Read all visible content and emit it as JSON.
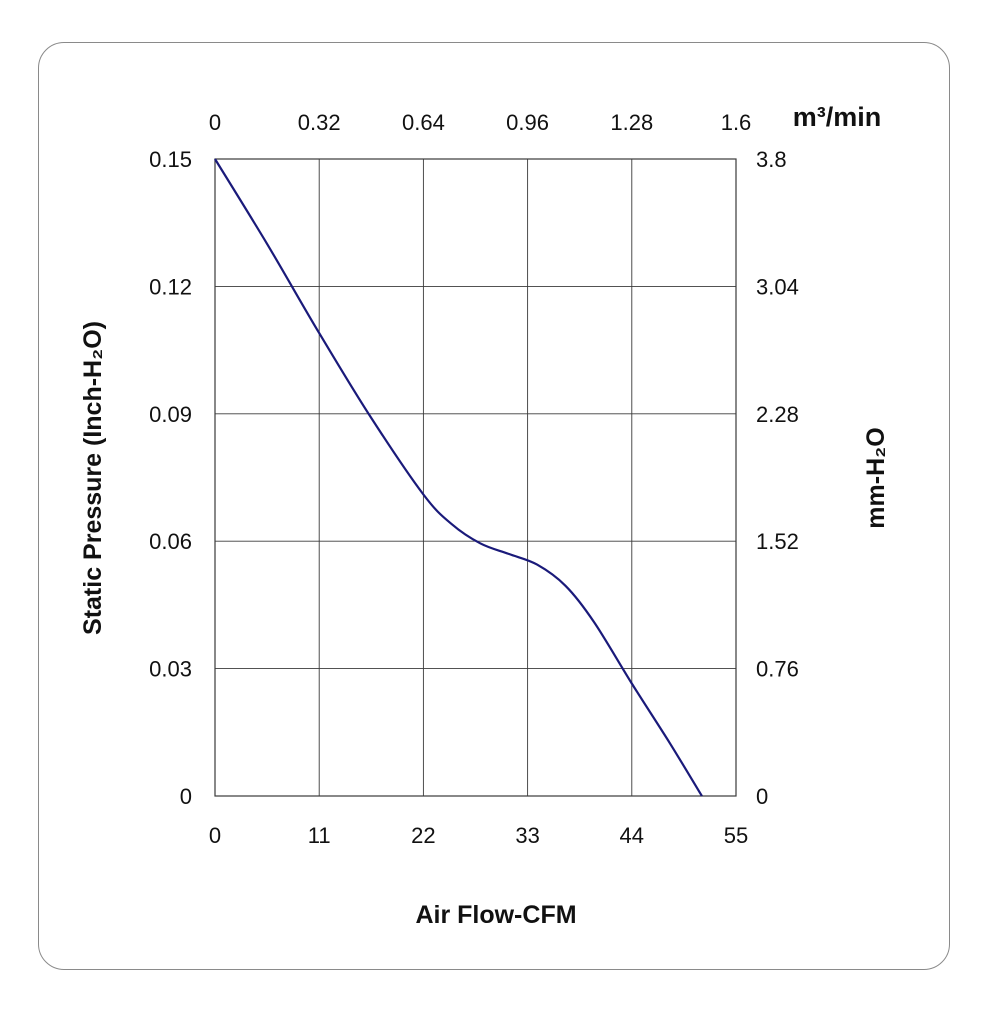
{
  "chart_data": {
    "type": "line",
    "xlabel": "Air Flow-CFM",
    "ylabel": "Static Pressure (Inch-H₂O)",
    "ylabel_right": "mm-H₂O",
    "xlabel_top": "m³/min",
    "xlim": [
      0,
      55
    ],
    "ylim": [
      0,
      0.15
    ],
    "x_ticks": [
      "0",
      "11",
      "22",
      "33",
      "44",
      "55"
    ],
    "y_ticks": [
      "0",
      "0.03",
      "0.06",
      "0.09",
      "0.12",
      "0.15"
    ],
    "top_ticks": [
      "0",
      "0.32",
      "0.64",
      "0.96",
      "1.28",
      "1.6"
    ],
    "right_ticks": [
      "0",
      "0.76",
      "1.52",
      "2.28",
      "3.04",
      "3.8"
    ],
    "grid": true,
    "series": [
      {
        "color": "#1a1a7a",
        "x": [
          0,
          5.5,
          11,
          16.5,
          22,
          25,
          28,
          31,
          34,
          37,
          40,
          44,
          48,
          51.4
        ],
        "y": [
          0.15,
          0.13,
          0.109,
          0.089,
          0.071,
          0.064,
          0.0595,
          0.057,
          0.0545,
          0.0495,
          0.041,
          0.0265,
          0.0125,
          0
        ]
      }
    ]
  }
}
